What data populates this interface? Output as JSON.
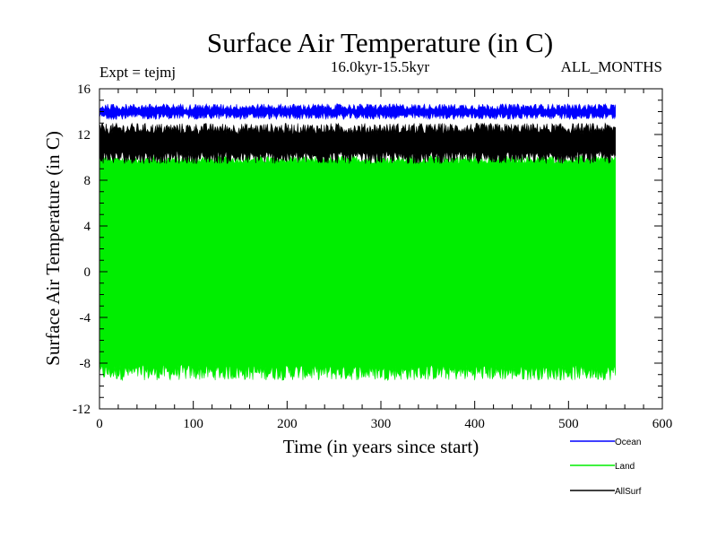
{
  "chart_data": {
    "type": "line",
    "title": "Surface Air Temperature (in C)",
    "subtitle": "16.0kyr-15.5kyr",
    "left_note": "Expt = tejmj",
    "right_note": "ALL_MONTHS",
    "xlabel": "Time (in years since start)",
    "ylabel": "Surface Air Temperature (in C)",
    "xlim": [
      0,
      600
    ],
    "ylim": [
      -12,
      16
    ],
    "x_ticks": [
      0,
      100,
      200,
      300,
      400,
      500,
      600
    ],
    "y_ticks": [
      -12,
      -8,
      -4,
      0,
      4,
      8,
      12,
      16
    ],
    "x_ticks_text": [
      "0",
      "100",
      "200",
      "300",
      "400",
      "500",
      "600"
    ],
    "y_ticks_text": [
      "-12",
      "-8",
      "-4",
      "0",
      "4",
      "8",
      "12",
      "16"
    ],
    "x_range_data": [
      0,
      550
    ],
    "series": [
      {
        "name": "Land",
        "color": "#00ee00",
        "low": -8.8,
        "high": 9.8,
        "low_min": -9.8,
        "high_max": 10.3,
        "start_value": 6.8
      },
      {
        "name": "AllSurf",
        "color": "#000000",
        "low": 10.0,
        "high": 12.5,
        "low_min": 9.2,
        "high_max": 13.2,
        "start_value": 10.5
      },
      {
        "name": "Ocean",
        "color": "#0000ff",
        "low": 13.6,
        "high": 14.4,
        "low_min": 13.2,
        "high_max": 14.8,
        "start_value": 13.8
      }
    ],
    "legend": [
      {
        "name": "Ocean",
        "color": "#0000ff"
      },
      {
        "name": "Land",
        "color": "#00ee00"
      },
      {
        "name": "AllSurf",
        "color": "#000000"
      }
    ]
  }
}
